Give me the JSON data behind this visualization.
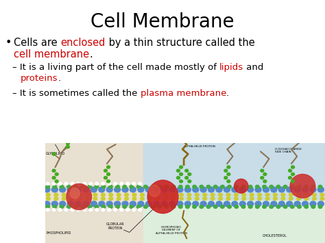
{
  "title": "Cell Membrane",
  "title_fontsize": 20,
  "title_color": "#000000",
  "background_color": "#ffffff",
  "text_color": "#000000",
  "red_color": "#cc0000",
  "bullet_fontsize": 10.5,
  "sub_fontsize": 9.5,
  "line1a": [
    [
      "Cells are ",
      "#000000",
      false
    ],
    [
      "enclosed",
      "#cc0000",
      true
    ],
    [
      " by a thin structure called the",
      "#000000",
      false
    ]
  ],
  "line1b": [
    [
      "cell membrane",
      "#cc0000",
      true
    ],
    [
      ".",
      "#000000",
      false
    ]
  ],
  "line2a": [
    [
      "– It is a living part of the cell made mostly of ",
      "#000000",
      false
    ],
    [
      "lipids",
      "#cc0000",
      true
    ],
    [
      " and",
      "#000000",
      false
    ]
  ],
  "line2b": [
    [
      "proteins",
      "#cc0000",
      true
    ],
    [
      ".",
      "#000000",
      false
    ]
  ],
  "line3": [
    [
      "– It is sometimes called the ",
      "#000000",
      false
    ],
    [
      "plasma membrane",
      "#cc0000",
      true
    ],
    [
      ".",
      "#000000",
      false
    ]
  ]
}
